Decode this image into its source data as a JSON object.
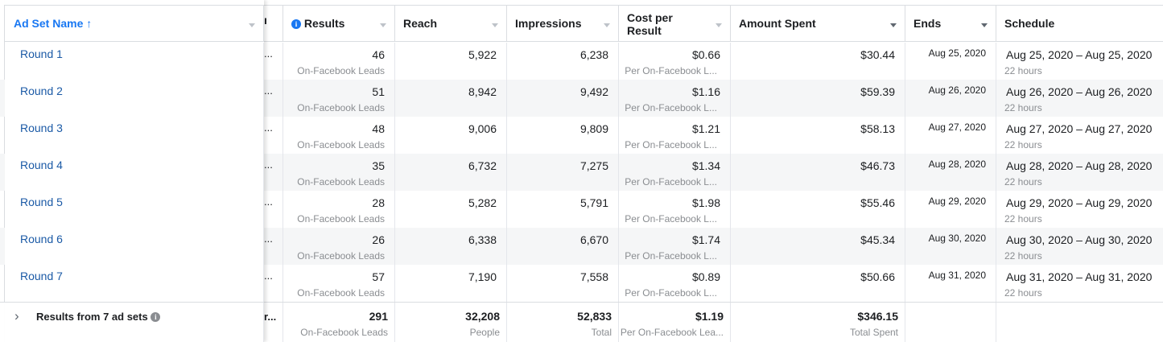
{
  "columns": {
    "ad_set_name": "Ad Set Name",
    "results": "Results",
    "reach": "Reach",
    "impressions": "Impressions",
    "cost_per_result_line1": "Cost per",
    "cost_per_result_line2": "Result",
    "amount_spent": "Amount Spent",
    "ends": "Ends",
    "schedule": "Schedule"
  },
  "rows": [
    {
      "name": "Round 1",
      "results": "46",
      "results_sub": "On-Facebook Leads",
      "reach": "5,922",
      "impressions": "6,238",
      "cpr": "$0.66",
      "cpr_sub": "Per On-Facebook L...",
      "spent": "$30.44",
      "ends": "Aug 25, 2020",
      "schedule": "Aug 25, 2020 – Aug 25, 2020",
      "schedule_sub": "22 hours"
    },
    {
      "name": "Round 2",
      "results": "51",
      "results_sub": "On-Facebook Leads",
      "reach": "8,942",
      "impressions": "9,492",
      "cpr": "$1.16",
      "cpr_sub": "Per On-Facebook L...",
      "spent": "$59.39",
      "ends": "Aug 26, 2020",
      "schedule": "Aug 26, 2020 – Aug 26, 2020",
      "schedule_sub": "22 hours"
    },
    {
      "name": "Round 3",
      "results": "48",
      "results_sub": "On-Facebook Leads",
      "reach": "9,006",
      "impressions": "9,809",
      "cpr": "$1.21",
      "cpr_sub": "Per On-Facebook L...",
      "spent": "$58.13",
      "ends": "Aug 27, 2020",
      "schedule": "Aug 27, 2020 – Aug 27, 2020",
      "schedule_sub": "22 hours"
    },
    {
      "name": "Round 4",
      "results": "35",
      "results_sub": "On-Facebook Leads",
      "reach": "6,732",
      "impressions": "7,275",
      "cpr": "$1.34",
      "cpr_sub": "Per On-Facebook L...",
      "spent": "$46.73",
      "ends": "Aug 28, 2020",
      "schedule": "Aug 28, 2020 – Aug 28, 2020",
      "schedule_sub": "22 hours"
    },
    {
      "name": "Round 5",
      "results": "28",
      "results_sub": "On-Facebook Leads",
      "reach": "5,282",
      "impressions": "5,791",
      "cpr": "$1.98",
      "cpr_sub": "Per On-Facebook L...",
      "spent": "$55.46",
      "ends": "Aug 29, 2020",
      "schedule": "Aug 29, 2020 – Aug 29, 2020",
      "schedule_sub": "22 hours"
    },
    {
      "name": "Round 6",
      "results": "26",
      "results_sub": "On-Facebook Leads",
      "reach": "6,338",
      "impressions": "6,670",
      "cpr": "$1.74",
      "cpr_sub": "Per On-Facebook L...",
      "spent": "$45.34",
      "ends": "Aug 30, 2020",
      "schedule": "Aug 30, 2020 – Aug 30, 2020",
      "schedule_sub": "22 hours"
    },
    {
      "name": "Round 7",
      "results": "57",
      "results_sub": "On-Facebook Leads",
      "reach": "7,190",
      "impressions": "7,558",
      "cpr": "$0.89",
      "cpr_sub": "Per On-Facebook L...",
      "spent": "$50.66",
      "ends": "Aug 31, 2020",
      "schedule": "Aug 31, 2020 – Aug 31, 2020",
      "schedule_sub": "22 hours"
    }
  ],
  "truncated_cell": "...",
  "footer": {
    "label": "Results from 7 ad sets",
    "hidden_col": "r...",
    "results": "291",
    "results_sub": "On-Facebook Leads",
    "reach": "32,208",
    "reach_sub": "People",
    "impressions": "52,833",
    "impressions_sub": "Total",
    "cpr": "$1.19",
    "cpr_sub": "Per On-Facebook Lea...",
    "spent": "$346.15",
    "spent_sub": "Total Spent"
  },
  "icons": {
    "sort_asc": "↑",
    "info": "i",
    "expand": "›"
  },
  "colors": {
    "link": "#1b5aa6",
    "accent": "#1877f2",
    "row_alt": "#f5f6f7"
  }
}
